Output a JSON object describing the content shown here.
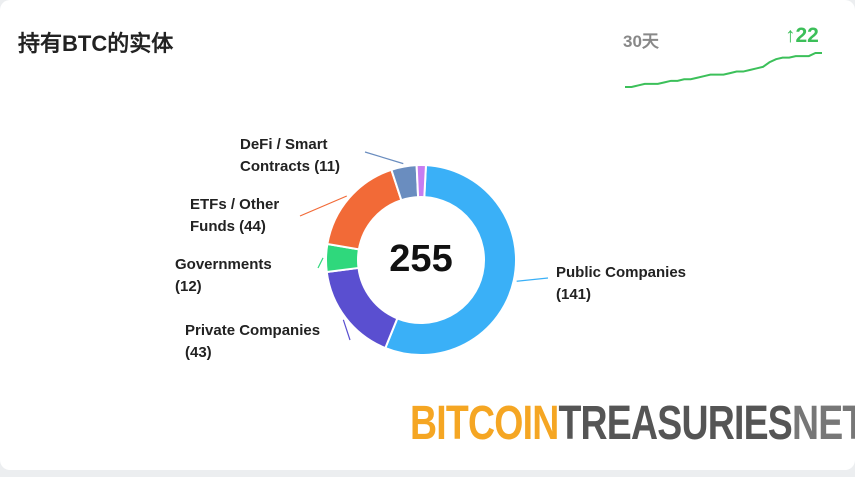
{
  "header": {
    "title": "持有BTC的实体",
    "period": "30天",
    "arrow": "↑",
    "change": 22
  },
  "chart_data": [
    {
      "type": "donut",
      "total": 255,
      "categories": [
        "Public Companies",
        "Private Companies",
        "Governments",
        "ETFs / Other Funds",
        "DeFi / Smart Contracts",
        null
      ],
      "values": [
        141,
        43,
        12,
        44,
        11,
        4
      ],
      "value_labels": [
        "(141)",
        "(43)",
        "(12)",
        "(44)",
        "(11)",
        null
      ],
      "colors": [
        "#3ab0f7",
        "#5a4fd0",
        "#2fd87c",
        "#f26a37",
        "#6a8dbf",
        "#c77df0"
      ]
    },
    {
      "type": "line",
      "color": "#3cc05a",
      "values": [
        233,
        233,
        234,
        235,
        235,
        235,
        236,
        237,
        237,
        238,
        238,
        239,
        240,
        241,
        241,
        241,
        242,
        243,
        243,
        244,
        245,
        246,
        249,
        251,
        252,
        252,
        253,
        253,
        253,
        255,
        255
      ]
    }
  ],
  "watermark": {
    "part1": "BITCOIN",
    "part2": "TREASURIES",
    "part3": "NET"
  }
}
